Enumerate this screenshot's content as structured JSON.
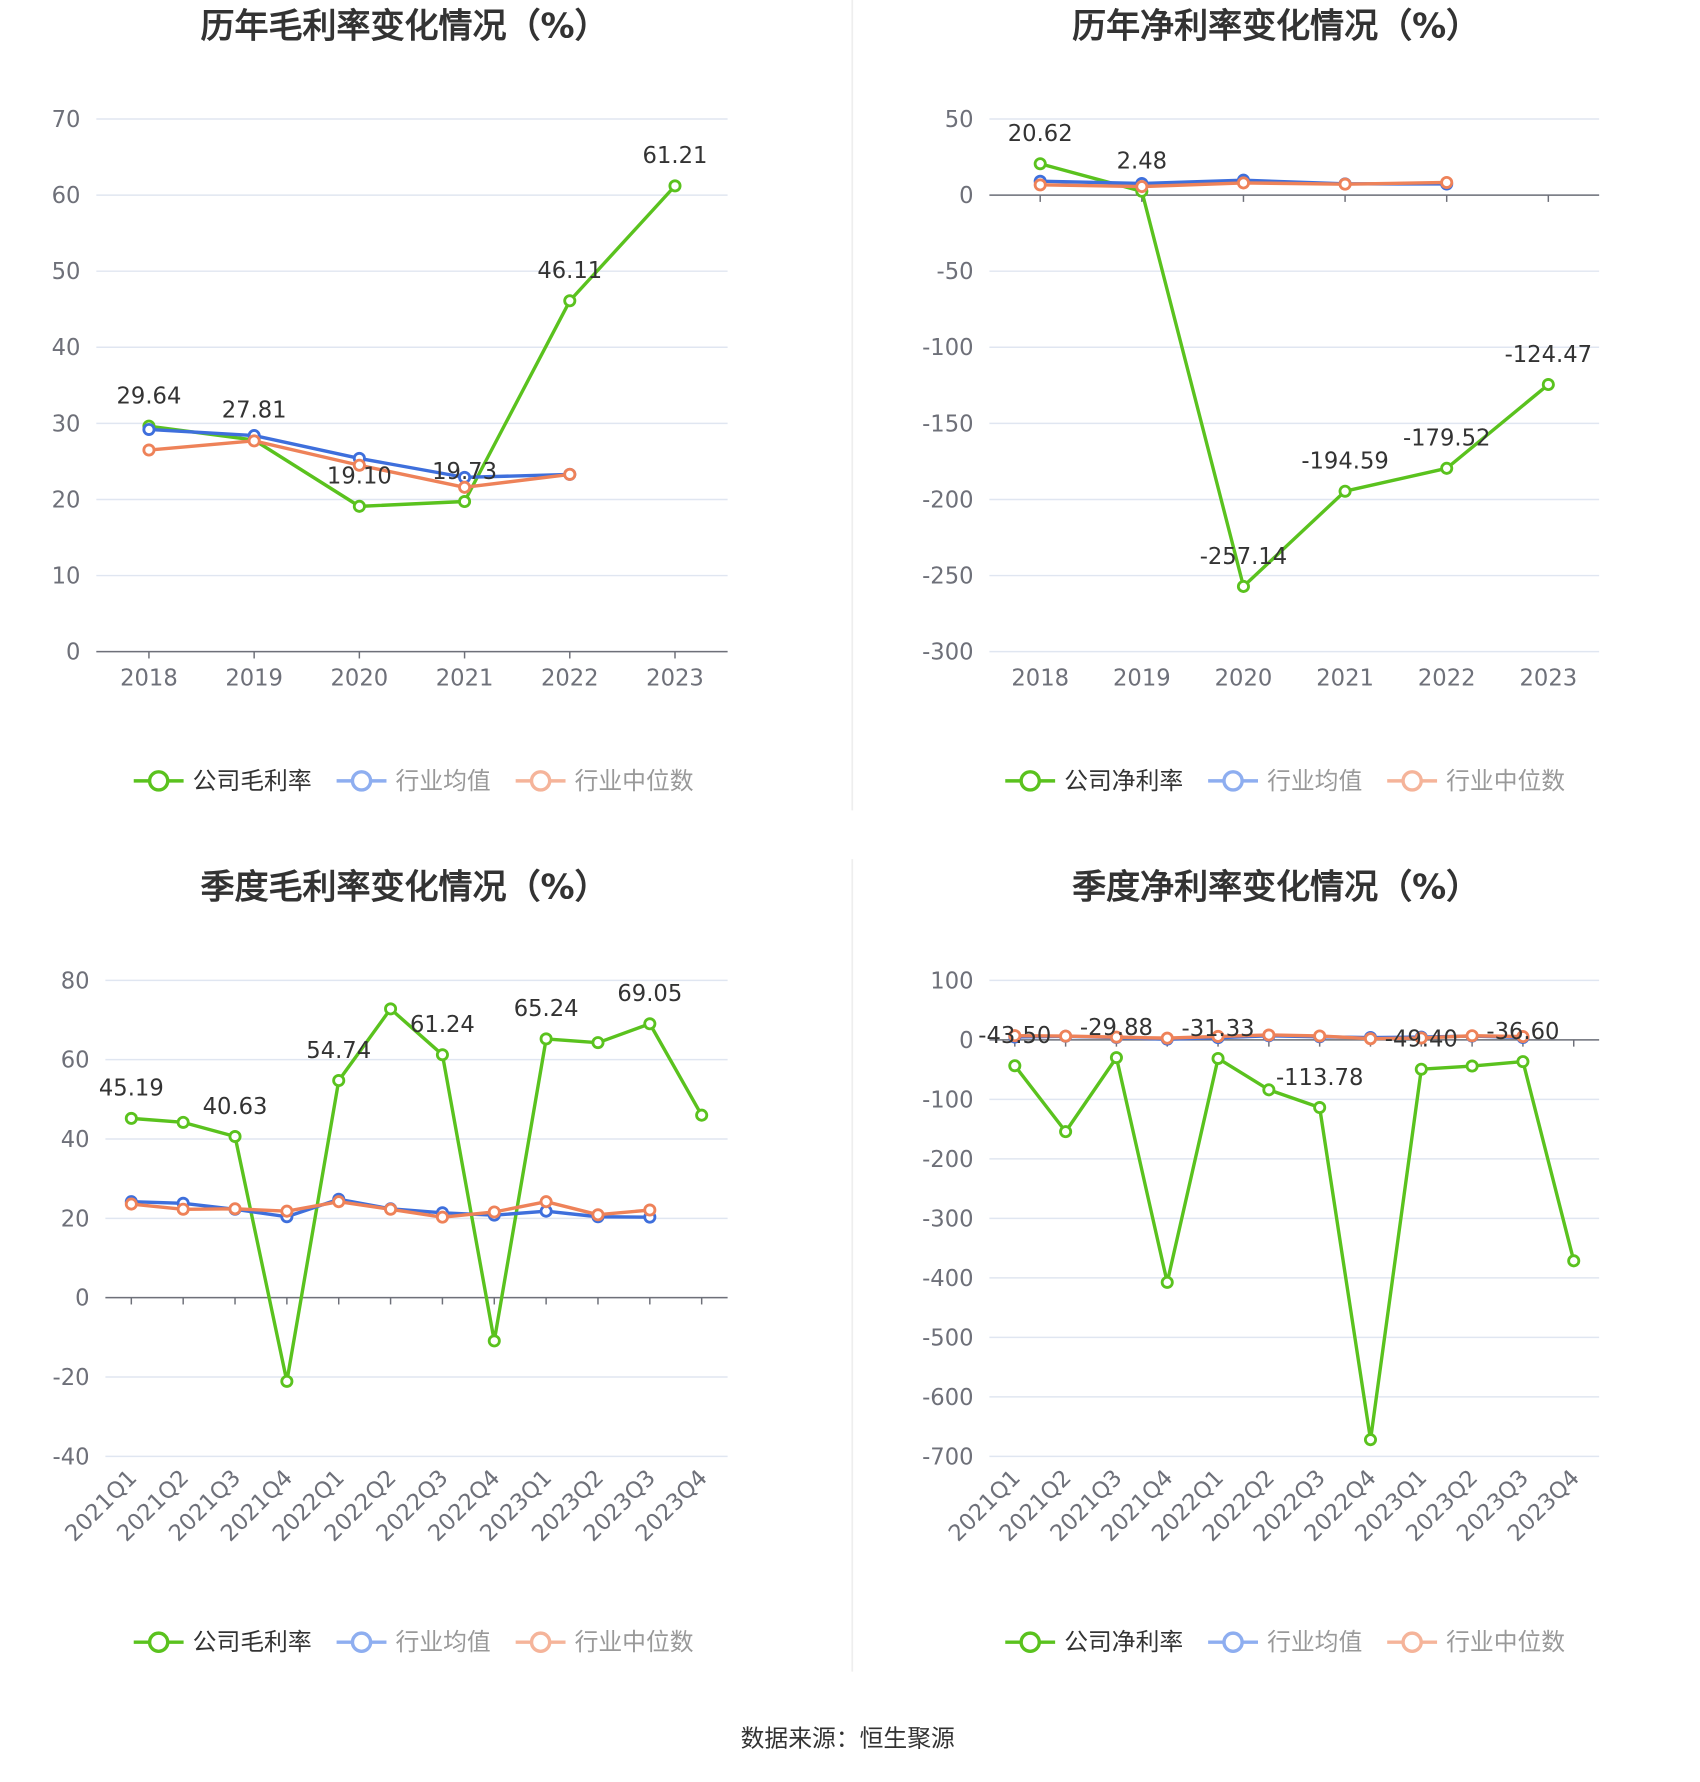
{
  "chart_data": [
    {
      "type": "line",
      "title": "历年毛利率变化情况（%）",
      "categories": [
        "2018",
        "2019",
        "2020",
        "2021",
        "2022",
        "2023"
      ],
      "ylim": [
        0,
        70
      ],
      "yticks": [
        0,
        10,
        20,
        30,
        40,
        50,
        60,
        70
      ],
      "legend": "bottom",
      "grid": true,
      "series": [
        {
          "name": "公司毛利率",
          "color": "#5ac21e",
          "legend_color": "#5ac21e",
          "legend_text_color": "#333333",
          "values": [
            29.64,
            27.81,
            19.1,
            19.73,
            46.11,
            61.21
          ],
          "labels": [
            "29.64",
            "27.81",
            "19.10",
            "19.73",
            "46.11",
            "61.21"
          ]
        },
        {
          "name": "行业均值",
          "color": "#3e6fdc",
          "legend_color": "#8eaef0",
          "legend_text_color": "#999999",
          "values": [
            29.2,
            28.4,
            25.4,
            22.9,
            23.3,
            null
          ]
        },
        {
          "name": "行业中位数",
          "color": "#ee8259",
          "legend_color": "#f5b49a",
          "legend_text_color": "#999999",
          "values": [
            26.5,
            27.7,
            24.5,
            21.6,
            23.3,
            null
          ]
        }
      ]
    },
    {
      "type": "line",
      "title": "历年净利率变化情况（%）",
      "categories": [
        "2018",
        "2019",
        "2020",
        "2021",
        "2022",
        "2023"
      ],
      "ylim": [
        -300,
        50
      ],
      "yticks": [
        -300,
        -250,
        -200,
        -150,
        -100,
        -50,
        0,
        50
      ],
      "legend": "bottom",
      "grid": true,
      "series": [
        {
          "name": "公司净利率",
          "color": "#5ac21e",
          "legend_color": "#5ac21e",
          "legend_text_color": "#333333",
          "values": [
            20.62,
            2.48,
            -257.14,
            -194.59,
            -179.52,
            -124.47
          ],
          "labels": [
            "20.62",
            "2.48",
            "-257.14",
            "-194.59",
            "-179.52",
            "-124.47"
          ]
        },
        {
          "name": "行业均值",
          "color": "#3e6fdc",
          "legend_color": "#8eaef0",
          "legend_text_color": "#999999",
          "values": [
            9.1,
            7.6,
            9.8,
            7.4,
            7.3,
            null
          ]
        },
        {
          "name": "行业中位数",
          "color": "#ee8259",
          "legend_color": "#f5b49a",
          "legend_text_color": "#999999",
          "values": [
            6.7,
            5.6,
            8.0,
            7.2,
            8.3,
            null
          ]
        }
      ]
    },
    {
      "type": "line",
      "title": "季度毛利率变化情况（%）",
      "categories": [
        "2021Q1",
        "2021Q2",
        "2021Q3",
        "2021Q4",
        "2022Q1",
        "2022Q2",
        "2022Q3",
        "2022Q4",
        "2023Q1",
        "2023Q2",
        "2023Q3",
        "2023Q4"
      ],
      "ylim": [
        -40,
        80
      ],
      "yticks": [
        -40,
        -20,
        0,
        20,
        40,
        60,
        80
      ],
      "legend": "bottom",
      "grid": true,
      "series": [
        {
          "name": "公司毛利率",
          "color": "#5ac21e",
          "legend_color": "#5ac21e",
          "legend_text_color": "#333333",
          "values": [
            45.19,
            44.2,
            40.63,
            -21.1,
            54.74,
            72.8,
            61.24,
            -10.9,
            65.24,
            64.3,
            69.05,
            46.0
          ],
          "labels": [
            "45.19",
            null,
            "40.63",
            null,
            "54.74",
            null,
            "61.24",
            null,
            "65.24",
            null,
            "69.05",
            null
          ]
        },
        {
          "name": "行业均值",
          "color": "#3e6fdc",
          "legend_color": "#8eaef0",
          "legend_text_color": "#999999",
          "values": [
            24.2,
            23.8,
            22.3,
            20.4,
            24.8,
            22.4,
            21.4,
            20.8,
            21.8,
            20.4,
            20.3,
            null
          ]
        },
        {
          "name": "行业中位数",
          "color": "#ee8259",
          "legend_color": "#f5b49a",
          "legend_text_color": "#999999",
          "values": [
            23.6,
            22.3,
            22.4,
            21.8,
            24.2,
            22.3,
            20.3,
            21.6,
            24.2,
            20.9,
            22.1,
            null
          ]
        }
      ]
    },
    {
      "type": "line",
      "title": "季度净利率变化情况（%）",
      "categories": [
        "2021Q1",
        "2021Q2",
        "2021Q3",
        "2021Q4",
        "2022Q1",
        "2022Q2",
        "2022Q3",
        "2022Q4",
        "2023Q1",
        "2023Q2",
        "2023Q3",
        "2023Q4"
      ],
      "ylim": [
        -700,
        100
      ],
      "yticks": [
        -700,
        -600,
        -500,
        -400,
        -300,
        -200,
        -100,
        0,
        100
      ],
      "legend": "bottom",
      "grid": true,
      "series": [
        {
          "name": "公司净利率",
          "color": "#5ac21e",
          "legend_color": "#5ac21e",
          "legend_text_color": "#333333",
          "values": [
            -43.5,
            -154.3,
            -29.88,
            -407.6,
            -31.33,
            -84.0,
            -113.78,
            -672.0,
            -49.4,
            -44.0,
            -36.6,
            -371.4
          ],
          "labels": [
            "-43.50",
            null,
            "-29.88",
            null,
            "-31.33",
            null,
            "-113.78",
            null,
            "-49.40",
            null,
            "-36.60",
            null
          ]
        },
        {
          "name": "行业均值",
          "color": "#3e6fdc",
          "legend_color": "#8eaef0",
          "legend_text_color": "#999999",
          "values": [
            4.8,
            5.9,
            3.8,
            1.2,
            3.6,
            6.8,
            5.1,
            3.9,
            4.6,
            6.2,
            4.0,
            null
          ]
        },
        {
          "name": "行业中位数",
          "color": "#ee8259",
          "legend_color": "#f5b49a",
          "legend_text_color": "#999999",
          "values": [
            7.0,
            6.3,
            4.6,
            2.8,
            5.7,
            8.1,
            6.5,
            1.9,
            3.1,
            6.9,
            5.5,
            null
          ]
        }
      ]
    }
  ],
  "source": "数据来源：恒生聚源"
}
